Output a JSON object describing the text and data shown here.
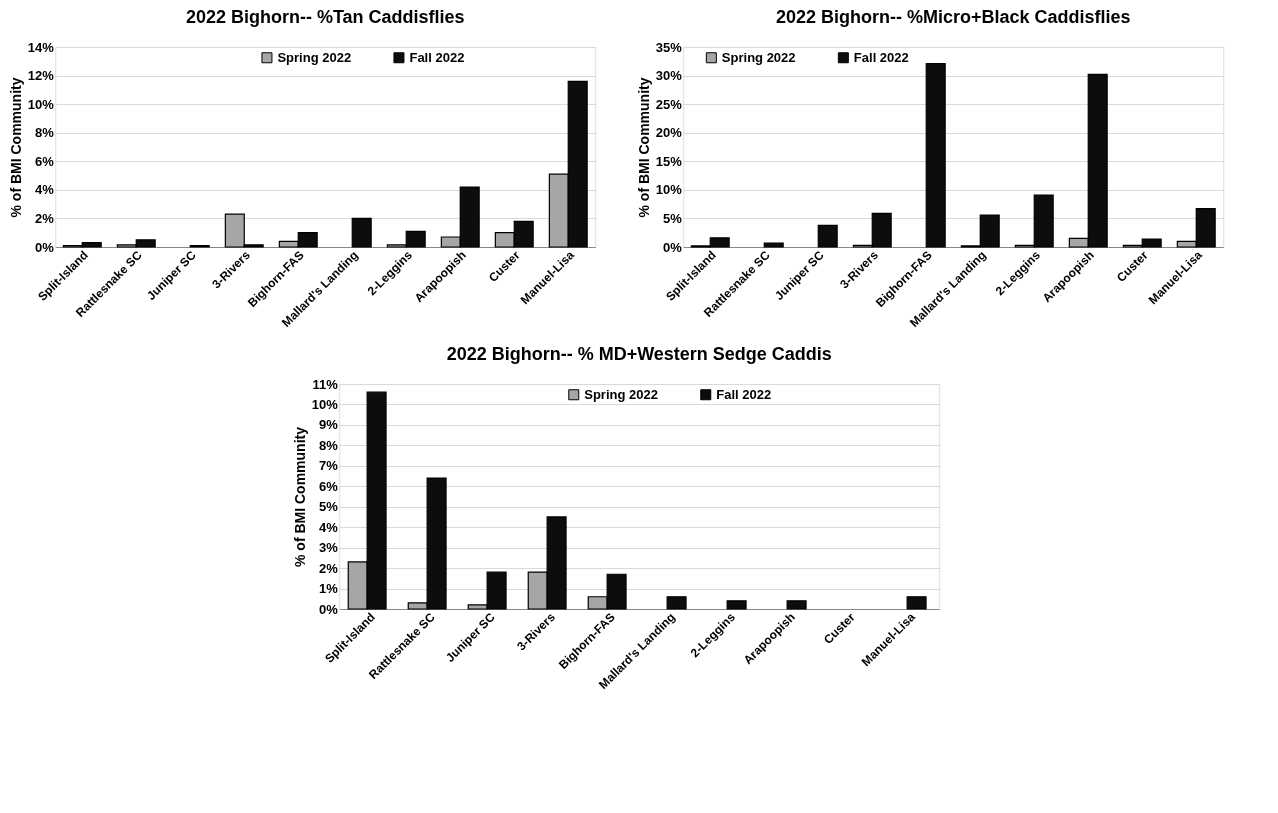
{
  "chart_data": [
    {
      "type": "bar",
      "title": "2022 Bighorn-- %Tan Caddisflies",
      "ylabel": "% of BMI Community",
      "categories": [
        "Split-Island",
        "Rattlesnake SC",
        "Juniper SC",
        "3-Rivers",
        "Bighorn-FAS",
        "Mallard's Landing",
        "2-Leggins",
        "Arapoopish",
        "Custer",
        "Manuel-Lisa"
      ],
      "series": [
        {
          "name": "Spring 2022",
          "color": "#a6a6a6",
          "values": [
            0.1,
            0.15,
            0,
            2.3,
            0.4,
            0,
            0.15,
            0.7,
            1.0,
            5.1
          ]
        },
        {
          "name": "Fall 2022",
          "color": "#0d0d0d",
          "values": [
            0.3,
            0.5,
            0.1,
            0.15,
            1.0,
            2.0,
            1.1,
            4.2,
            1.8,
            11.6
          ]
        }
      ],
      "ylim": [
        0,
        14
      ],
      "yticks": [
        {
          "value": 0,
          "label": "0%"
        },
        {
          "value": 2,
          "label": "2%"
        },
        {
          "value": 4,
          "label": "4%"
        },
        {
          "value": 6,
          "label": "6%"
        },
        {
          "value": 8,
          "label": "8%"
        },
        {
          "value": 10,
          "label": "10%"
        },
        {
          "value": 12,
          "label": "12%"
        },
        {
          "value": 14,
          "label": "14%"
        }
      ],
      "grid": "y",
      "legend": "top"
    },
    {
      "type": "bar",
      "title": "2022 Bighorn-- %Micro+Black Caddisflies",
      "ylabel": "% of BMI Community",
      "categories": [
        "Split-Island",
        "Rattlesnake SC",
        "Juniper SC",
        "3-Rivers",
        "Bighorn-FAS",
        "Mallard's Landing",
        "2-Leggins",
        "Arapoopish",
        "Custer",
        "Manuel-Lisa"
      ],
      "series": [
        {
          "name": "Spring 2022",
          "color": "#a6a6a6",
          "values": [
            0.2,
            0,
            0,
            0.3,
            0,
            0.2,
            0.3,
            1.5,
            0.3,
            1.0
          ]
        },
        {
          "name": "Fall 2022",
          "color": "#0d0d0d",
          "values": [
            1.6,
            0.7,
            3.8,
            5.9,
            32.1,
            5.6,
            9.1,
            30.2,
            1.4,
            6.7
          ]
        }
      ],
      "ylim": [
        0,
        35
      ],
      "yticks": [
        {
          "value": 0,
          "label": "0%"
        },
        {
          "value": 5,
          "label": "5%"
        },
        {
          "value": 10,
          "label": "10%"
        },
        {
          "value": 15,
          "label": "15%"
        },
        {
          "value": 20,
          "label": "20%"
        },
        {
          "value": 25,
          "label": "25%"
        },
        {
          "value": 30,
          "label": "30%"
        },
        {
          "value": 35,
          "label": "35%"
        }
      ],
      "grid": "y",
      "legend": "top left"
    },
    {
      "type": "bar",
      "title": "2022 Bighorn-- % MD+Western Sedge Caddis",
      "ylabel": "% of BMI Community",
      "categories": [
        "Split-Island",
        "Rattlesnake SC",
        "Juniper SC",
        "3-Rivers",
        "Bighorn-FAS",
        "Mallard's Landing",
        "2-Leggins",
        "Arapoopish",
        "Custer",
        "Manuel-Lisa"
      ],
      "series": [
        {
          "name": "Spring 2022",
          "color": "#a6a6a6",
          "values": [
            2.3,
            0.3,
            0.2,
            1.8,
            0.6,
            0,
            0,
            0,
            0,
            0
          ]
        },
        {
          "name": "Fall 2022",
          "color": "#0d0d0d",
          "values": [
            10.6,
            6.4,
            1.8,
            4.5,
            1.7,
            0.6,
            0.4,
            0.4,
            0,
            0.6
          ]
        }
      ],
      "ylim": [
        0,
        11
      ],
      "yticks": [
        {
          "value": 0,
          "label": "0%"
        },
        {
          "value": 1,
          "label": "1%"
        },
        {
          "value": 2,
          "label": "2%"
        },
        {
          "value": 3,
          "label": "3%"
        },
        {
          "value": 4,
          "label": "4%"
        },
        {
          "value": 5,
          "label": "5%"
        },
        {
          "value": 6,
          "label": "6%"
        },
        {
          "value": 7,
          "label": "7%"
        },
        {
          "value": 8,
          "label": "8%"
        },
        {
          "value": 9,
          "label": "9%"
        },
        {
          "value": 10,
          "label": "10%"
        },
        {
          "value": 11,
          "label": "11%"
        }
      ],
      "grid": "y",
      "legend": "top"
    }
  ]
}
